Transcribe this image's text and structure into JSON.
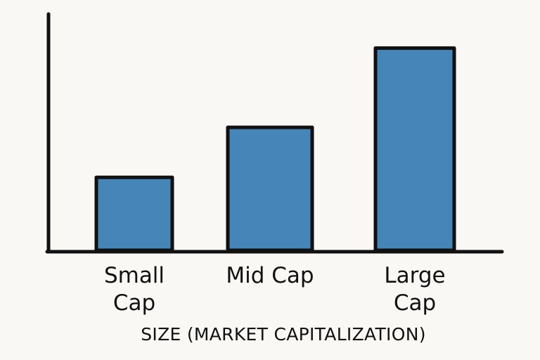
{
  "chart_data": {
    "type": "bar",
    "categories": [
      "Small Cap",
      "Mid Cap",
      "Large Cap"
    ],
    "category_lines": [
      [
        "Small",
        "Cap"
      ],
      [
        "Mid Cap"
      ],
      [
        "Large",
        "Cap"
      ]
    ],
    "values": [
      105,
      177,
      291
    ],
    "xlabel": "SIZE (MARKET CAPITALIZATION)",
    "ylabel": "",
    "ylim": [
      0,
      340
    ],
    "grid": false,
    "legend": "none",
    "colors": {
      "bar": "#4585b8",
      "outline": "#111111",
      "axis": "#111111",
      "background": "#faf8f4"
    }
  }
}
